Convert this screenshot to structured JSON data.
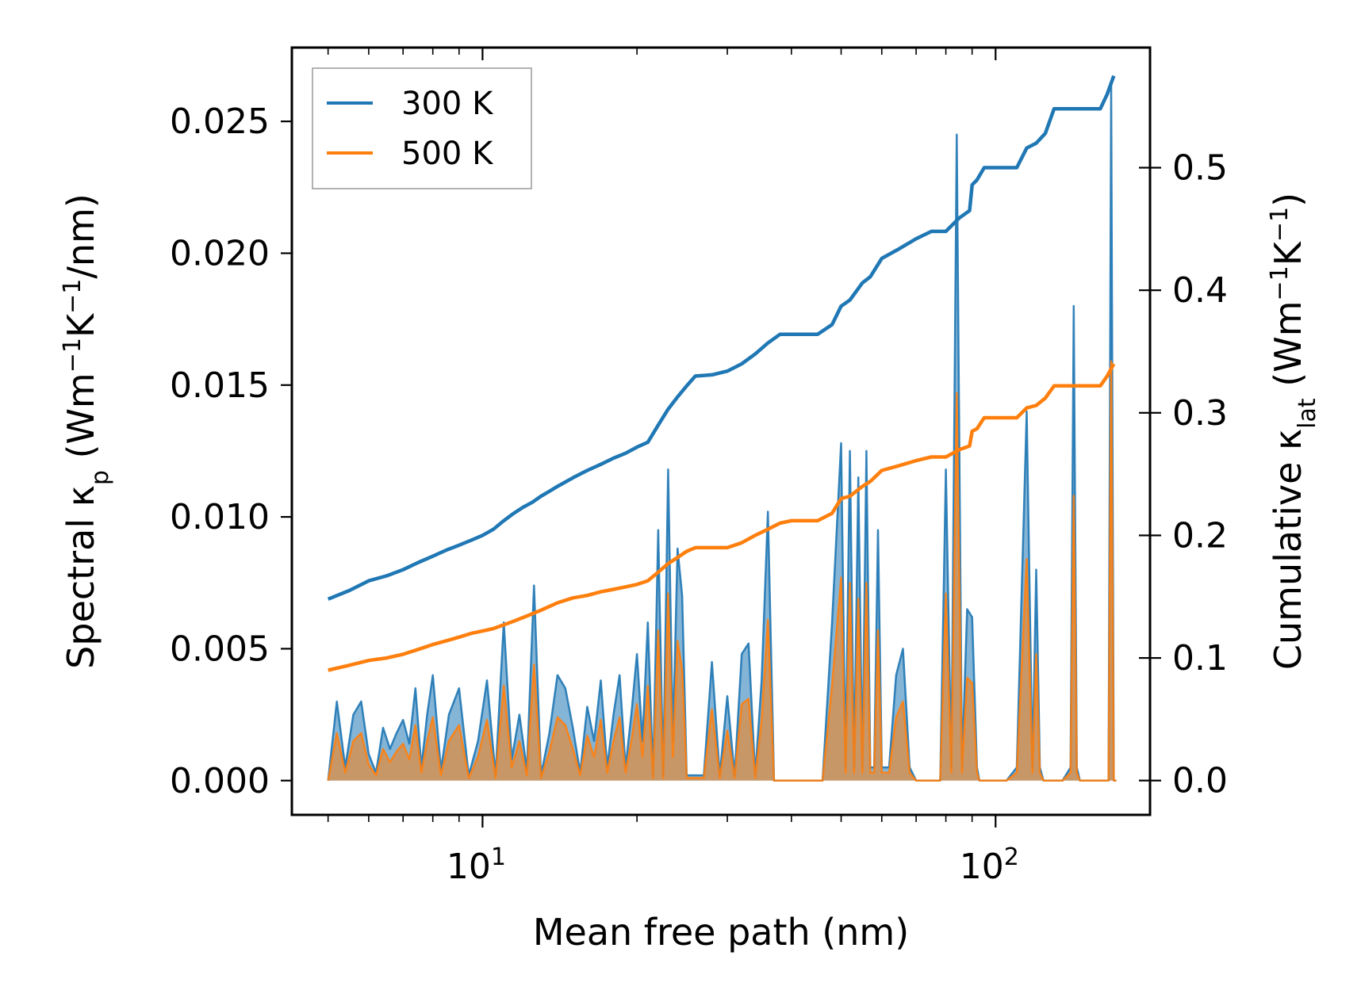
{
  "chart_data": {
    "type": "line",
    "xlabel": "Mean free path (nm)",
    "x_scale": "log",
    "xlim": [
      4.25,
      200
    ],
    "x_tick_labels": [
      {
        "value": 10,
        "base": "10",
        "exp": "1"
      },
      {
        "value": 100,
        "base": "10",
        "exp": "2"
      }
    ],
    "y_left": {
      "label_parts": [
        "Spectral κ",
        "p",
        " (Wm",
        "−1",
        "K",
        "−1",
        "/nm)"
      ],
      "ylim": [
        -0.0013,
        0.0278
      ],
      "ticks": [
        0.0,
        0.005,
        0.01,
        0.015,
        0.02,
        0.025
      ],
      "tick_labels": [
        "0.000",
        "0.005",
        "0.010",
        "0.015",
        "0.020",
        "0.025"
      ]
    },
    "y_right": {
      "label_parts": [
        "Cumulative κ",
        "lat",
        " (Wm",
        "−1",
        "K",
        "−1",
        ")"
      ],
      "ylim": [
        -0.028,
        0.598
      ],
      "ticks": [
        0.0,
        0.1,
        0.2,
        0.3,
        0.4,
        0.5
      ],
      "tick_labels": [
        "0.0",
        "0.1",
        "0.2",
        "0.3",
        "0.4",
        "0.5"
      ]
    },
    "legend": {
      "position": "top-left",
      "entries": [
        "300 K",
        "500 K"
      ]
    },
    "series": [
      {
        "name": "300 K",
        "color": "#1f77b4",
        "cumulative": {
          "x": [
            5,
            5.5,
            6,
            6.5,
            7,
            7.5,
            8,
            8.5,
            9,
            9.5,
            10,
            10.5,
            11,
            11.5,
            12,
            12.5,
            13,
            13.5,
            14,
            15,
            16,
            17,
            18,
            19,
            20,
            21,
            22,
            23,
            24,
            25,
            26,
            28,
            30,
            32,
            34,
            36,
            38,
            40,
            45,
            48,
            50,
            52,
            55,
            57,
            60,
            65,
            70,
            75,
            80,
            85,
            89,
            90,
            92,
            95,
            100,
            110,
            115,
            120,
            125,
            130,
            140,
            150,
            160,
            165,
            170
          ],
          "y": [
            0.148,
            0.155,
            0.163,
            0.167,
            0.172,
            0.178,
            0.183,
            0.188,
            0.192,
            0.196,
            0.2,
            0.205,
            0.212,
            0.218,
            0.223,
            0.227,
            0.232,
            0.236,
            0.24,
            0.247,
            0.253,
            0.258,
            0.263,
            0.267,
            0.272,
            0.276,
            0.29,
            0.303,
            0.313,
            0.322,
            0.33,
            0.331,
            0.334,
            0.34,
            0.348,
            0.357,
            0.364,
            0.364,
            0.364,
            0.372,
            0.387,
            0.392,
            0.406,
            0.411,
            0.426,
            0.434,
            0.442,
            0.448,
            0.448,
            0.459,
            0.465,
            0.486,
            0.49,
            0.5,
            0.5,
            0.5,
            0.516,
            0.52,
            0.528,
            0.548,
            0.548,
            0.548,
            0.548,
            0.56,
            0.575
          ]
        },
        "spectral": {
          "x": [
            5,
            5.2,
            5.4,
            5.6,
            5.8,
            6,
            6.2,
            6.4,
            6.6,
            6.8,
            7,
            7.2,
            7.4,
            7.6,
            7.8,
            8,
            8.3,
            8.6,
            9,
            9.4,
            9.8,
            10.2,
            10.6,
            11,
            11.4,
            11.8,
            12.2,
            12.6,
            13,
            13.5,
            14,
            14.5,
            15,
            15.5,
            16,
            16.5,
            17,
            17.5,
            18,
            18.5,
            19,
            19.5,
            20,
            20.5,
            21,
            21.5,
            22,
            22.5,
            23,
            23.5,
            24,
            24.5,
            25,
            25.5,
            26,
            27,
            28,
            29,
            30,
            31,
            32,
            33,
            34,
            35,
            36,
            37,
            38,
            39,
            40,
            42,
            44,
            46,
            48,
            50,
            51,
            52,
            53,
            54,
            55,
            56,
            57,
            58,
            59,
            60,
            62,
            64,
            66,
            68,
            70,
            72,
            74,
            76,
            78,
            80,
            82,
            84,
            86,
            88,
            90,
            92,
            93,
            95,
            97,
            100,
            105,
            110,
            115,
            118,
            120,
            122,
            124,
            126,
            128,
            130,
            135,
            140,
            142,
            144,
            146,
            150,
            160,
            164,
            166,
            168,
            170,
            172
          ],
          "y": [
            0,
            0.003,
            0.0005,
            0.0025,
            0.003,
            0.001,
            0.0003,
            0.002,
            0.0012,
            0.0018,
            0.0023,
            0.0014,
            0.0035,
            0.0005,
            0.0025,
            0.004,
            0.0004,
            0.0025,
            0.0035,
            0.0002,
            0.0015,
            0.0038,
            0.0002,
            0.006,
            0.0008,
            0.0025,
            0.0004,
            0.0074,
            0.0002,
            0.0018,
            0.004,
            0.0035,
            0.002,
            0.0003,
            0.0028,
            0.0015,
            0.0038,
            0.0005,
            0.0025,
            0.004,
            0.0005,
            0.0025,
            0.0048,
            0.0015,
            0.006,
            0.0002,
            0.0095,
            0.0002,
            0.0118,
            0.0015,
            0.0088,
            0.007,
            0.0002,
            0.0002,
            0.0002,
            0.0002,
            0.0045,
            0.0002,
            0.0032,
            0.0002,
            0.0048,
            0.0052,
            0.0002,
            0.0038,
            0.0102,
            0,
            0,
            0,
            0,
            0,
            0,
            0,
            0.006,
            0.0128,
            0.0005,
            0.0125,
            0.0005,
            0.0115,
            0.0005,
            0.0125,
            0.0005,
            0.0005,
            0.0095,
            0.0005,
            0.0005,
            0.004,
            0.005,
            0.0005,
            0,
            0,
            0,
            0,
            0,
            0.0118,
            0.0005,
            0.0245,
            0.0005,
            0.0065,
            0.0062,
            0.0005,
            0,
            0,
            0,
            0,
            0,
            0.0005,
            0.014,
            0.0005,
            0.008,
            0.0005,
            0,
            0,
            0,
            0,
            0,
            0.0005,
            0.018,
            0.0005,
            0,
            0,
            0,
            0,
            0,
            0.0265,
            0,
            0
          ]
        }
      },
      {
        "name": "500 K",
        "color": "#ff7f0e",
        "cumulative": {
          "x": [
            5,
            5.5,
            6,
            6.5,
            7,
            7.5,
            8,
            8.5,
            9,
            9.5,
            10,
            10.5,
            11,
            11.5,
            12,
            12.5,
            13,
            13.5,
            14,
            15,
            16,
            17,
            18,
            19,
            20,
            21,
            22,
            23,
            24,
            25,
            26,
            28,
            30,
            32,
            34,
            36,
            38,
            40,
            45,
            48,
            50,
            52,
            55,
            57,
            60,
            65,
            70,
            75,
            80,
            85,
            89,
            90,
            92,
            95,
            100,
            110,
            115,
            120,
            125,
            130,
            140,
            150,
            160,
            165,
            170
          ],
          "y": [
            0.09,
            0.094,
            0.098,
            0.1,
            0.103,
            0.107,
            0.111,
            0.114,
            0.117,
            0.12,
            0.122,
            0.124,
            0.127,
            0.13,
            0.133,
            0.136,
            0.139,
            0.142,
            0.145,
            0.149,
            0.151,
            0.154,
            0.156,
            0.158,
            0.16,
            0.163,
            0.17,
            0.177,
            0.182,
            0.187,
            0.19,
            0.19,
            0.19,
            0.194,
            0.2,
            0.205,
            0.21,
            0.212,
            0.212,
            0.218,
            0.23,
            0.232,
            0.24,
            0.244,
            0.253,
            0.257,
            0.261,
            0.264,
            0.264,
            0.27,
            0.273,
            0.285,
            0.287,
            0.296,
            0.296,
            0.296,
            0.304,
            0.306,
            0.312,
            0.322,
            0.322,
            0.322,
            0.322,
            0.33,
            0.34
          ]
        },
        "spectral": {
          "x": [
            5,
            5.2,
            5.4,
            5.6,
            5.8,
            6,
            6.2,
            6.4,
            6.6,
            6.8,
            7,
            7.2,
            7.4,
            7.6,
            7.8,
            8,
            8.3,
            8.6,
            9,
            9.4,
            9.8,
            10.2,
            10.6,
            11,
            11.4,
            11.8,
            12.2,
            12.6,
            13,
            13.5,
            14,
            14.5,
            15,
            15.5,
            16,
            16.5,
            17,
            17.5,
            18,
            18.5,
            19,
            19.5,
            20,
            20.5,
            21,
            21.5,
            22,
            22.5,
            23,
            23.5,
            24,
            24.5,
            25,
            25.5,
            26,
            27,
            28,
            29,
            30,
            31,
            32,
            33,
            34,
            35,
            36,
            37,
            38,
            39,
            40,
            42,
            44,
            46,
            48,
            50,
            51,
            52,
            53,
            54,
            55,
            56,
            57,
            58,
            59,
            60,
            62,
            64,
            66,
            68,
            70,
            72,
            74,
            76,
            78,
            80,
            82,
            84,
            86,
            88,
            90,
            92,
            93,
            95,
            97,
            100,
            105,
            110,
            115,
            118,
            120,
            122,
            124,
            126,
            128,
            130,
            135,
            140,
            142,
            144,
            146,
            150,
            160,
            164,
            166,
            168,
            170,
            172
          ],
          "y": [
            0,
            0.0018,
            0.0003,
            0.0015,
            0.0018,
            0.0006,
            0.0002,
            0.0012,
            0.0007,
            0.0011,
            0.0014,
            0.0008,
            0.0021,
            0.0003,
            0.0015,
            0.0024,
            0.0002,
            0.0015,
            0.0021,
            0.0001,
            0.0009,
            0.0023,
            0.0001,
            0.0036,
            0.0005,
            0.0015,
            0.0002,
            0.0044,
            0.0001,
            0.0011,
            0.0024,
            0.0021,
            0.0012,
            0.0002,
            0.0017,
            0.0009,
            0.0023,
            0.0003,
            0.0015,
            0.0024,
            0.0003,
            0.0015,
            0.0029,
            0.0009,
            0.0036,
            0.0001,
            0.0057,
            0.0001,
            0.0071,
            0.0009,
            0.0053,
            0.0042,
            0.0001,
            0.0001,
            0.0001,
            0.0001,
            0.0027,
            0.0001,
            0.0019,
            0.0001,
            0.0029,
            0.0031,
            0.0001,
            0.0023,
            0.0061,
            0,
            0,
            0,
            0,
            0,
            0,
            0,
            0.0036,
            0.0077,
            0.0003,
            0.0075,
            0.0003,
            0.0069,
            0.0003,
            0.0075,
            0.0003,
            0.0003,
            0.0057,
            0.0003,
            0.0003,
            0.0024,
            0.003,
            0.0003,
            0,
            0,
            0,
            0,
            0,
            0.0071,
            0.0003,
            0.0147,
            0.0003,
            0.0039,
            0.0037,
            0.0003,
            0,
            0,
            0,
            0,
            0,
            0.0003,
            0.0084,
            0.0003,
            0.0048,
            0.0003,
            0,
            0,
            0,
            0,
            0,
            0.0003,
            0.0108,
            0.0003,
            0,
            0,
            0,
            0,
            0,
            0.0159,
            0,
            0
          ]
        }
      }
    ]
  }
}
